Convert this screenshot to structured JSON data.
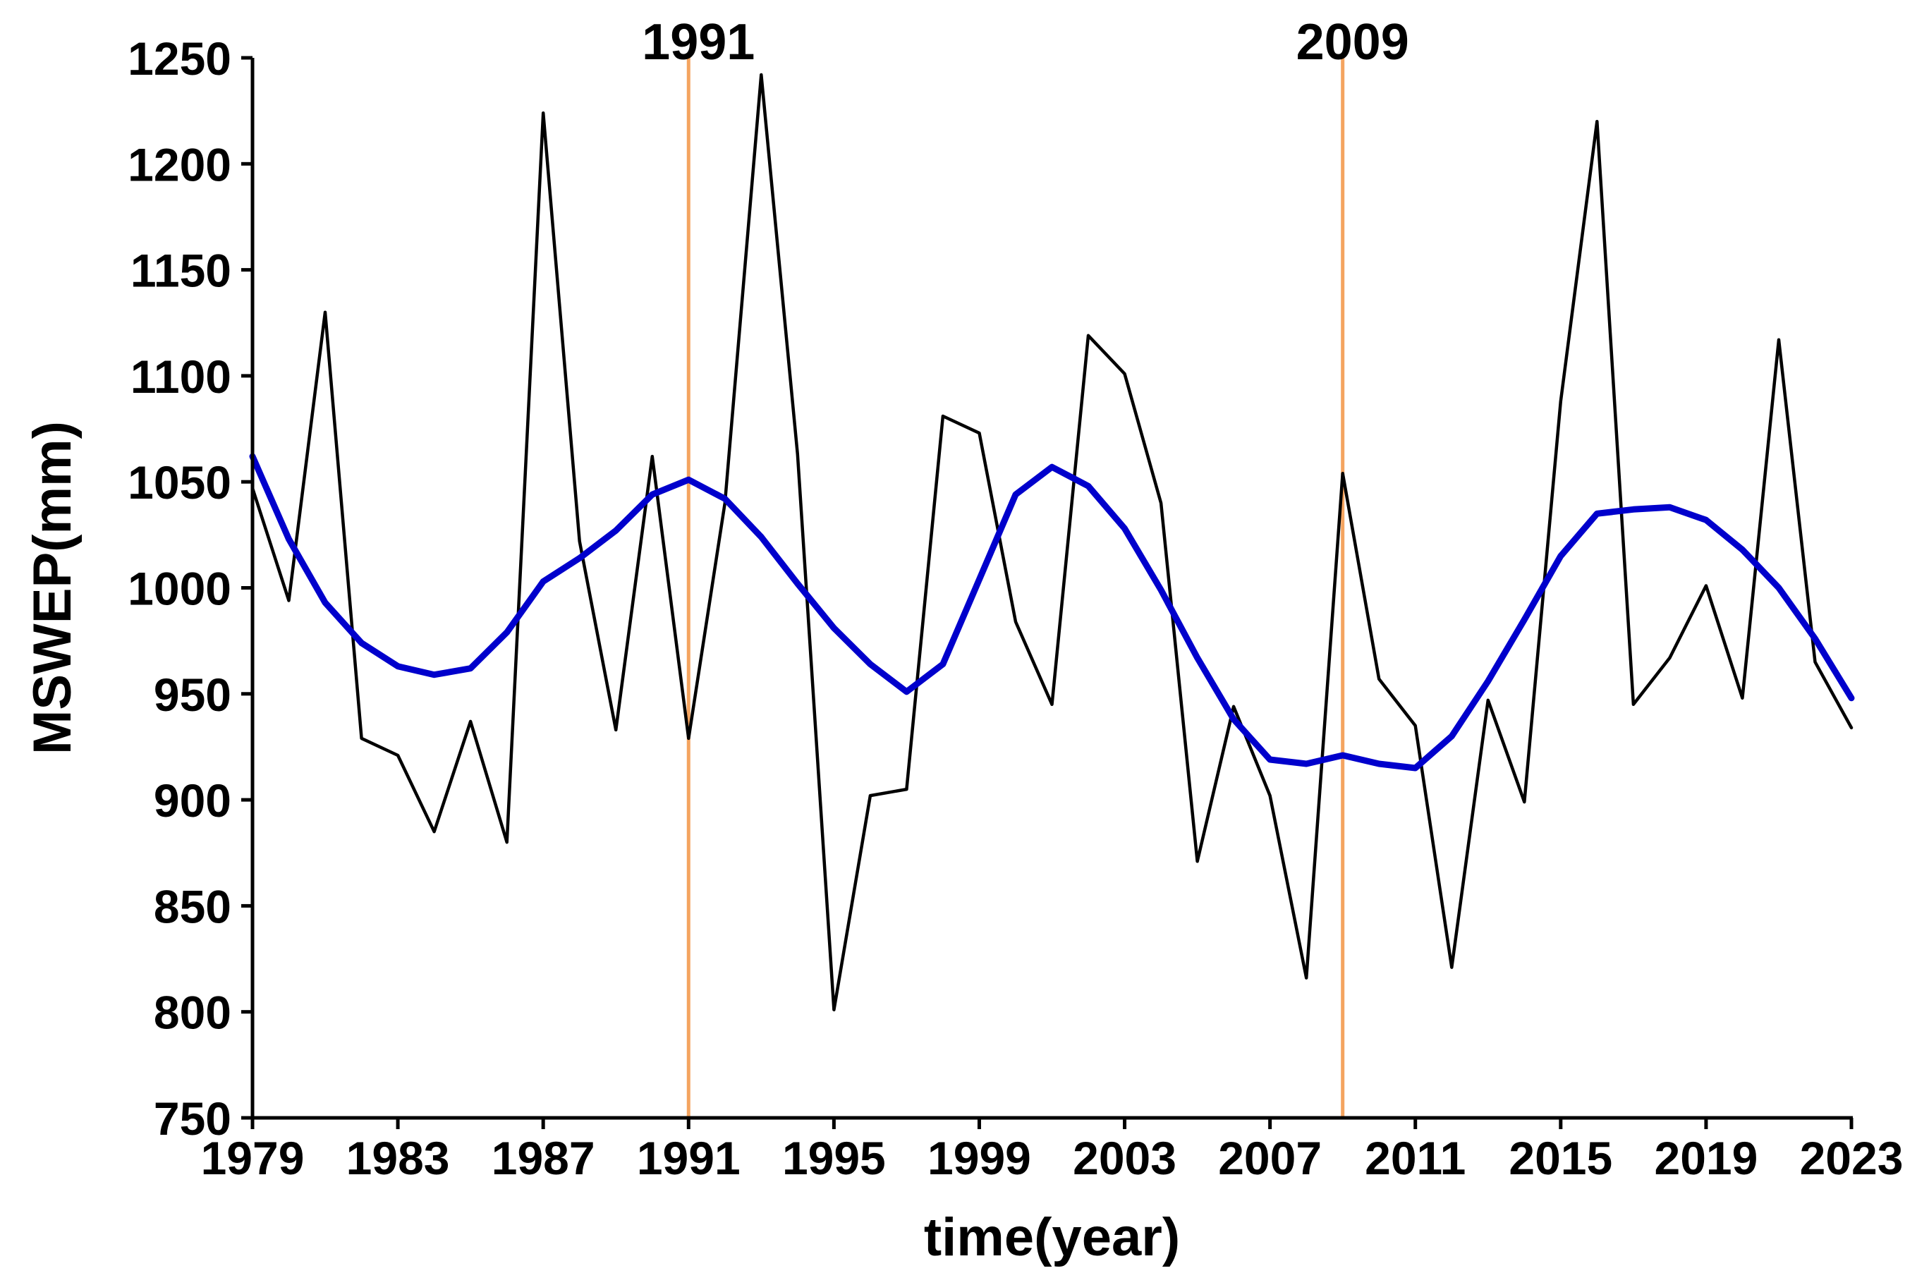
{
  "chart_data": {
    "type": "line",
    "xlabel": "time(year)",
    "ylabel": "MSWEP(mm)",
    "xlim": [
      1979,
      2023
    ],
    "ylim": [
      750,
      1250
    ],
    "xticks": [
      1979,
      1983,
      1987,
      1991,
      1995,
      1999,
      2003,
      2007,
      2011,
      2015,
      2019,
      2023
    ],
    "yticks": [
      750,
      800,
      850,
      900,
      950,
      1000,
      1050,
      1100,
      1150,
      1200,
      1250
    ],
    "grid": false,
    "x": [
      1979,
      1980,
      1981,
      1982,
      1983,
      1984,
      1985,
      1986,
      1987,
      1988,
      1989,
      1990,
      1991,
      1992,
      1993,
      1994,
      1995,
      1996,
      1997,
      1998,
      1999,
      2000,
      2001,
      2002,
      2003,
      2004,
      2005,
      2006,
      2007,
      2008,
      2009,
      2010,
      2011,
      2012,
      2013,
      2014,
      2015,
      2016,
      2017,
      2018,
      2019,
      2020,
      2021,
      2022,
      2023
    ],
    "series": [
      {
        "color": "#000000",
        "values": [
          1047,
          994,
          1130,
          929,
          921,
          885,
          937,
          880,
          1224,
          1022,
          933,
          1062,
          929,
          1040,
          1242,
          1063,
          801,
          902,
          905,
          1081,
          1073,
          984,
          945,
          1119,
          1101,
          1040,
          871,
          944,
          902,
          816,
          1054,
          957,
          935,
          821,
          947,
          899,
          1088,
          1220,
          945,
          967,
          1001,
          948,
          1117,
          965,
          934
        ]
      },
      {
        "color": "#0000cc",
        "values": [
          1062,
          1023,
          993,
          974,
          963,
          959,
          962,
          979,
          1003,
          1014,
          1027,
          1044,
          1051,
          1042,
          1024,
          1002,
          981,
          964,
          951,
          964,
          1004,
          1044,
          1057,
          1048,
          1028,
          999,
          967,
          938,
          919,
          917,
          921,
          917,
          915,
          930,
          956,
          985,
          1015,
          1035,
          1037,
          1038,
          1032,
          1018,
          1000,
          976,
          948
        ]
      }
    ],
    "markers": [
      {
        "x": 1991,
        "label": "1991",
        "color": "#f4a460"
      },
      {
        "x": 2009,
        "label": "2009",
        "color": "#f4a460"
      }
    ]
  }
}
